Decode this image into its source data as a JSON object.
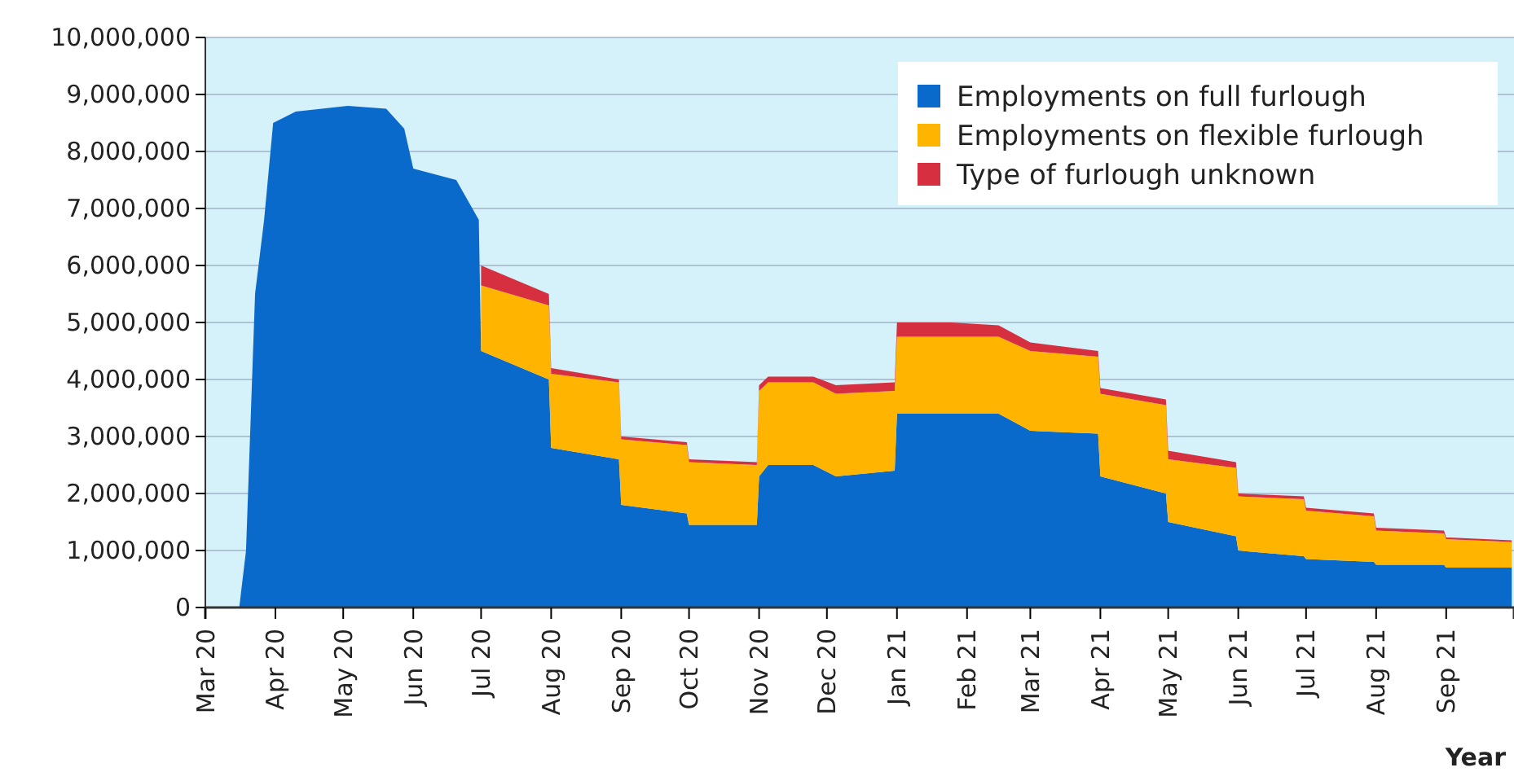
{
  "chart_data": {
    "type": "area",
    "stacked": true,
    "xlabel": "Year",
    "x": [
      "2020-03-16",
      "2020-03-19",
      "2020-03-23",
      "2020-03-27",
      "2020-03-31",
      "2020-04-10",
      "2020-05-03",
      "2020-05-20",
      "2020-05-28",
      "2020-06-01",
      "2020-06-20",
      "2020-06-30",
      "2020-07-01",
      "2020-07-31",
      "2020-08-01",
      "2020-08-31",
      "2020-09-01",
      "2020-09-30",
      "2020-10-01",
      "2020-10-31",
      "2020-11-01",
      "2020-11-05",
      "2020-11-25",
      "2020-12-05",
      "2020-12-31",
      "2021-01-01",
      "2021-01-25",
      "2021-02-15",
      "2021-03-01",
      "2021-03-31",
      "2021-04-01",
      "2021-04-30",
      "2021-05-01",
      "2021-05-31",
      "2021-06-01",
      "2021-06-30",
      "2021-07-01",
      "2021-07-31",
      "2021-08-01",
      "2021-08-31",
      "2021-09-01",
      "2021-09-30"
    ],
    "series": [
      {
        "name": "Employments on full furlough",
        "color": "#0a6acb",
        "values": [
          0,
          1000000,
          5500000,
          6800000,
          8500000,
          8700000,
          8800000,
          8750000,
          8400000,
          7700000,
          7500000,
          6800000,
          4500000,
          4000000,
          2800000,
          2600000,
          1800000,
          1650000,
          1450000,
          1450000,
          2300000,
          2500000,
          2500000,
          2300000,
          2400000,
          3400000,
          3400000,
          3400000,
          3100000,
          3050000,
          2300000,
          2000000,
          1500000,
          1250000,
          1000000,
          900000,
          850000,
          800000,
          750000,
          750000,
          700000,
          700000
        ]
      },
      {
        "name": "Employments on flexible furlough",
        "color": "#ffb400",
        "values": [
          null,
          null,
          null,
          null,
          null,
          null,
          null,
          null,
          null,
          null,
          null,
          null,
          1150000,
          1300000,
          1300000,
          1350000,
          1150000,
          1200000,
          1100000,
          1050000,
          1500000,
          1450000,
          1450000,
          1450000,
          1400000,
          1350000,
          1350000,
          1350000,
          1400000,
          1350000,
          1450000,
          1550000,
          1100000,
          1200000,
          950000,
          1000000,
          850000,
          800000,
          600000,
          550000,
          500000,
          450000
        ]
      },
      {
        "name": "Type of furlough unknown",
        "color": "#d63040",
        "values": [
          null,
          null,
          null,
          null,
          null,
          null,
          null,
          null,
          null,
          null,
          null,
          null,
          350000,
          200000,
          100000,
          50000,
          50000,
          50000,
          50000,
          50000,
          100000,
          100000,
          100000,
          150000,
          150000,
          250000,
          250000,
          200000,
          150000,
          100000,
          100000,
          100000,
          150000,
          100000,
          50000,
          50000,
          50000,
          50000,
          50000,
          50000,
          30000,
          30000
        ]
      }
    ],
    "xlim": [
      "2020-03-01",
      "2021-10-01"
    ],
    "xticks": [
      {
        "value": "2020-03-01",
        "label": "Mar 20"
      },
      {
        "value": "2020-04-01",
        "label": "Apr 20"
      },
      {
        "value": "2020-05-01",
        "label": "May 20"
      },
      {
        "value": "2020-06-01",
        "label": "Jun 20"
      },
      {
        "value": "2020-07-01",
        "label": "Jul 20"
      },
      {
        "value": "2020-08-01",
        "label": "Aug 20"
      },
      {
        "value": "2020-09-01",
        "label": "Sep 20"
      },
      {
        "value": "2020-10-01",
        "label": "Oct 20"
      },
      {
        "value": "2020-11-01",
        "label": "Nov 20"
      },
      {
        "value": "2020-12-01",
        "label": "Dec 20"
      },
      {
        "value": "2021-01-01",
        "label": "Jan 21"
      },
      {
        "value": "2021-02-01",
        "label": "Feb 21"
      },
      {
        "value": "2021-03-01",
        "label": "Mar 21"
      },
      {
        "value": "2021-04-01",
        "label": "Apr 21"
      },
      {
        "value": "2021-05-01",
        "label": "May 21"
      },
      {
        "value": "2021-06-01",
        "label": "Jun 21"
      },
      {
        "value": "2021-07-01",
        "label": "Jul 21"
      },
      {
        "value": "2021-08-01",
        "label": "Aug 21"
      },
      {
        "value": "2021-09-01",
        "label": "Sep 21"
      }
    ],
    "ylim": [
      0,
      10000000
    ],
    "yticks": [
      0,
      {
        "value": 1000000,
        "label": "1,000,000"
      },
      {
        "value": 2000000,
        "label": "2,000,000"
      },
      {
        "value": 3000000,
        "label": "3,000,000"
      },
      {
        "value": 4000000,
        "label": "4,000,000"
      },
      {
        "value": 5000000,
        "label": "5,000,000"
      },
      {
        "value": 6000000,
        "label": "6,000,000"
      },
      {
        "value": 7000000,
        "label": "7,000,000"
      },
      {
        "value": 8000000,
        "label": "8,000,000"
      },
      {
        "value": 9000000,
        "label": "9,000,000"
      },
      {
        "value": 10000000,
        "label": "10,000,000"
      }
    ],
    "grid": "y",
    "legend": "top right"
  }
}
